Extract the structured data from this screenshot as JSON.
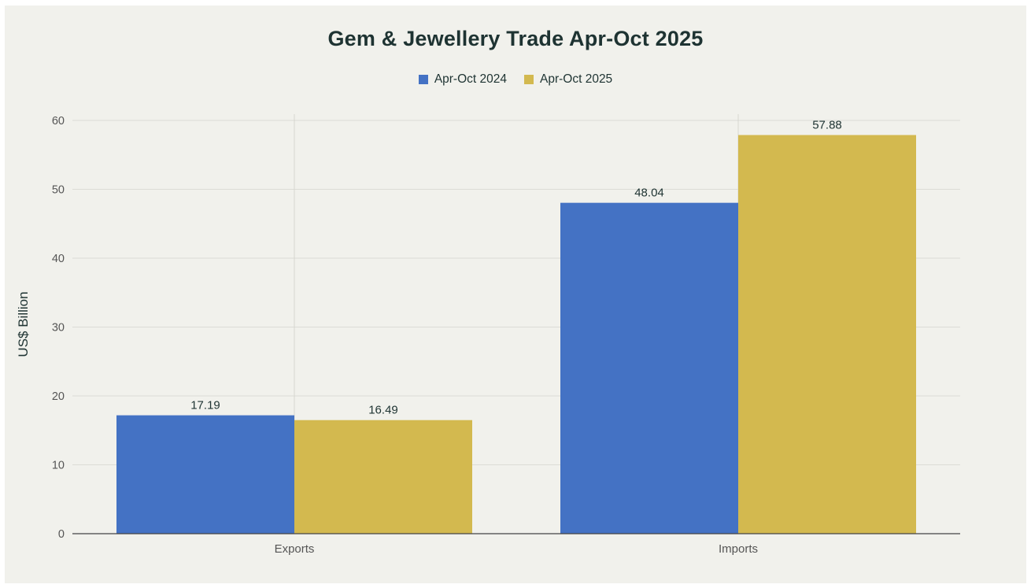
{
  "chart_data": {
    "type": "bar",
    "title": "Gem & Jewellery Trade Apr-Oct 2025",
    "xlabel": "",
    "ylabel": "US$ Billion",
    "categories": [
      "Exports",
      "Imports"
    ],
    "series": [
      {
        "name": "Apr-Oct 2024",
        "values": [
          17.19,
          48.04
        ],
        "labels": [
          "17.19",
          "48.04"
        ],
        "color": "#4472c4"
      },
      {
        "name": "Apr-Oct 2025",
        "values": [
          16.49,
          57.88
        ],
        "labels": [
          "16.49",
          "57.88"
        ],
        "color": "#d3b94f"
      }
    ],
    "ylim": [
      0,
      60
    ],
    "yticks": [
      "0",
      "10",
      "20",
      "30",
      "40",
      "50",
      "60"
    ],
    "grid": true,
    "legend": "top-center"
  }
}
